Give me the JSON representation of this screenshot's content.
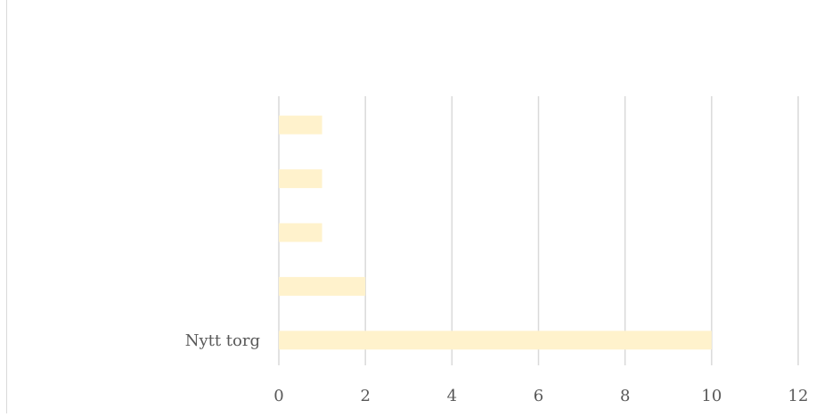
{
  "chart_data": {
    "type": "bar",
    "orientation": "horizontal",
    "categories": [
      "Nytt torg",
      "",
      "",
      "",
      ""
    ],
    "values": [
      10,
      2,
      1,
      1,
      1
    ],
    "title": "",
    "xlabel": "",
    "ylabel": "",
    "xlim": [
      0,
      12
    ],
    "xticks": [
      "0",
      "2",
      "4",
      "6",
      "8",
      "10",
      "12"
    ],
    "grid": true,
    "legend": "none",
    "bar_color": "#fff2cc",
    "grid_color": "#d9d9d9",
    "text_color": "#595959"
  }
}
